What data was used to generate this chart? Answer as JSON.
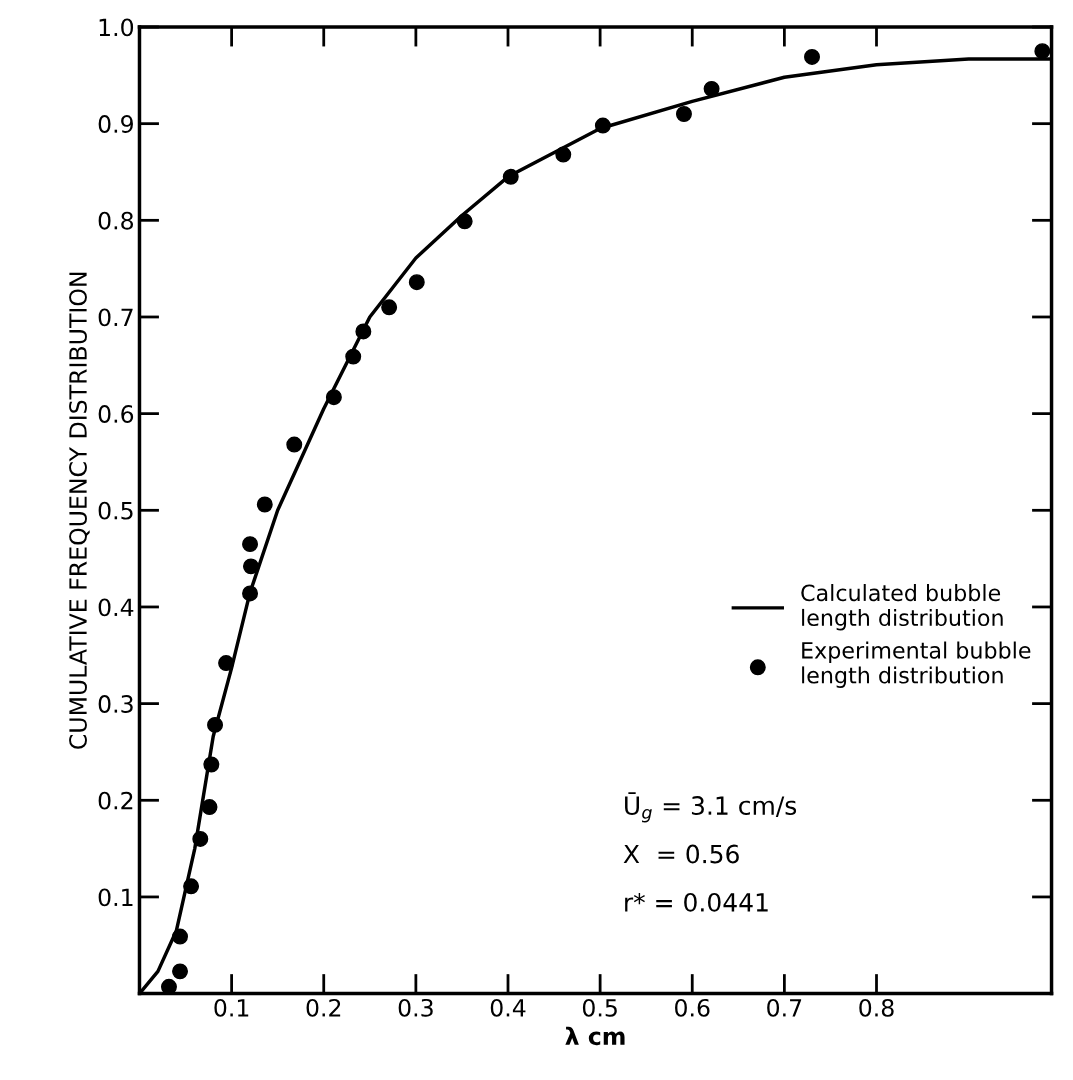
{
  "chart_data": {
    "type": "scatter",
    "xlabel": "λ cm",
    "ylabel": "CUMULATIVE FREQUENCY DISTRIBUTION",
    "xlim": [
      0,
      0.99
    ],
    "ylim": [
      0,
      1.0
    ],
    "xticks": [
      0.1,
      0.2,
      0.3,
      0.4,
      0.5,
      0.6,
      0.7,
      0.8
    ],
    "yticks": [
      0.1,
      0.2,
      0.3,
      0.4,
      0.5,
      0.6,
      0.7,
      0.8,
      0.9,
      {
        "value": 1.0,
        "label": "1.0"
      }
    ],
    "grid": false,
    "legend": "right",
    "series": [
      {
        "name": "Calculated bubble\nlength distribution",
        "type": "line",
        "color": "#000000",
        "marker": "none",
        "line_style": "solid",
        "x": [
          0,
          0.02,
          0.04,
          0.06,
          0.08,
          0.1,
          0.12,
          0.15,
          0.2,
          0.25,
          0.3,
          0.35,
          0.4,
          0.5,
          0.6,
          0.7,
          0.8,
          0.9,
          0.99
        ],
        "values": [
          0,
          0.023,
          0.065,
          0.15,
          0.266,
          0.337,
          0.415,
          0.5,
          0.605,
          0.7,
          0.761,
          0.805,
          0.845,
          0.895,
          0.923,
          0.948,
          0.961,
          0.967,
          0.967
        ]
      },
      {
        "name": "Experimental bubble\nlength distribution",
        "color": "#000000",
        "marker": "circle",
        "x": [
          0.032,
          0.044,
          0.044,
          0.056,
          0.066,
          0.076,
          0.078,
          0.082,
          0.094,
          0.12,
          0.121,
          0.12,
          0.136,
          0.168,
          0.211,
          0.232,
          0.243,
          0.271,
          0.301,
          0.353,
          0.403,
          0.46,
          0.503,
          0.591,
          0.621,
          0.73,
          0.98
        ],
        "values": [
          0.007,
          0.023,
          0.059,
          0.111,
          0.16,
          0.193,
          0.237,
          0.278,
          0.342,
          0.414,
          0.442,
          0.465,
          0.506,
          0.568,
          0.617,
          0.659,
          0.685,
          0.71,
          0.736,
          0.799,
          0.845,
          0.868,
          0.898,
          0.91,
          0.936,
          0.969,
          0.975
        ]
      }
    ],
    "annotations": [
      "Ū$_{g}$ = 3.1 cm/s",
      "X  = 0.56",
      "r* = 0.0441"
    ]
  }
}
